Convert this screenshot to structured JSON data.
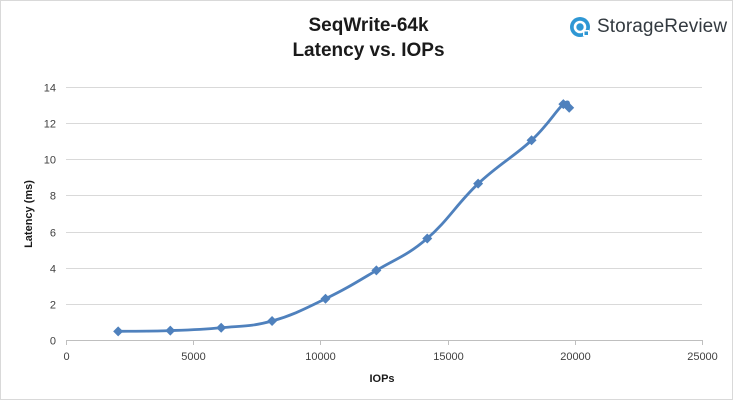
{
  "brand": {
    "name": "StorageReview",
    "icon": "storagereview-logo-icon",
    "accent": "#2e97d4"
  },
  "chart_data": {
    "type": "line",
    "title_lines": [
      "SeqWrite-64k",
      "Latency vs. IOPs"
    ],
    "xlabel": "IOPs",
    "ylabel": "Latency (ms)",
    "xlim": [
      0,
      25000
    ],
    "ylim": [
      0,
      14
    ],
    "xticks": [
      0,
      5000,
      10000,
      15000,
      20000,
      25000
    ],
    "yticks": [
      0,
      2,
      4,
      6,
      8,
      10,
      12,
      14
    ],
    "grid": true,
    "legend": "none",
    "marker": "diamond",
    "smooth": true,
    "color": "#4f81bd",
    "series": [
      {
        "x": [
          2050,
          4100,
          6100,
          8100,
          10200,
          12200,
          14200,
          16200,
          18300,
          19550,
          19780
        ],
        "y": [
          0.48,
          0.52,
          0.68,
          1.05,
          2.28,
          3.85,
          5.62,
          8.65,
          11.05,
          13.05,
          12.85
        ]
      }
    ]
  }
}
